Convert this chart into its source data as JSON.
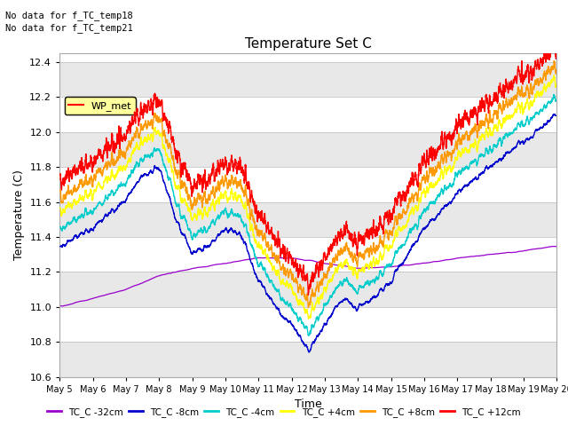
{
  "title": "Temperature Set C",
  "xlabel": "Time",
  "ylabel": "Temperature (C)",
  "ylim": [
    10.6,
    12.45
  ],
  "yticks": [
    10.6,
    10.8,
    11.0,
    11.2,
    11.4,
    11.6,
    11.8,
    12.0,
    12.2,
    12.4
  ],
  "annotations": [
    "No data for f_TC_temp18",
    "No data for f_TC_temp21"
  ],
  "legend_label": "WP_met",
  "series_labels": [
    "TC_C -32cm",
    "TC_C -8cm",
    "TC_C -4cm",
    "TC_C +4cm",
    "TC_C +8cm",
    "TC_C +12cm"
  ],
  "series_colors": [
    "#9900cc",
    "#0000cc",
    "#00cccc",
    "#ffff00",
    "#ff9900",
    "#ff0000"
  ],
  "background_color": "#ffffff",
  "band_colors": [
    "#e8e8e8",
    "#ffffff"
  ],
  "figsize": [
    6.4,
    4.8
  ],
  "dpi": 100
}
